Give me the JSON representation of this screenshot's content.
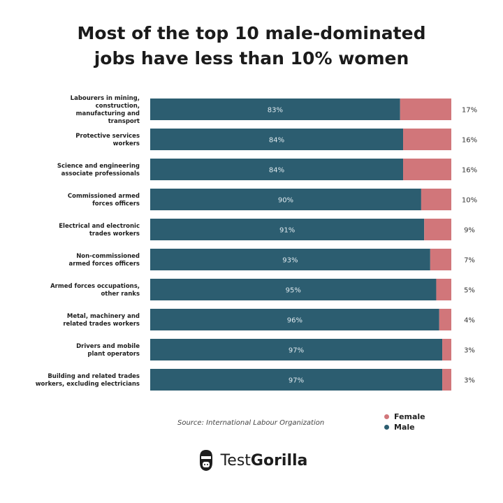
{
  "title": {
    "line1": "Most of the top 10 male-dominated",
    "line2": "jobs have less than 10% women"
  },
  "source": "Source: International Labour Organization",
  "brand": {
    "part1": "Test",
    "part2": "Gorilla",
    "icon": "gorilla-logo-icon"
  },
  "legend": [
    {
      "name": "Female",
      "color": "#d1767a"
    },
    {
      "name": "Male",
      "color": "#2c5d70"
    }
  ],
  "chart_data": {
    "type": "bar",
    "orientation": "horizontal",
    "stacked": true,
    "categories": [
      [
        "Labourers in mining,",
        "construction,",
        "manufacturing and",
        "transport"
      ],
      [
        "Protective services",
        "workers"
      ],
      [
        "Science and engineering",
        "associate professionals"
      ],
      [
        "Commissioned armed",
        "forces officers"
      ],
      [
        "Electrical and electronic",
        "trades workers"
      ],
      [
        "Non-commissioned",
        "armed forces officers"
      ],
      [
        "Armed forces occupations,",
        "other ranks"
      ],
      [
        "Metal, machinery and",
        "related trades workers"
      ],
      [
        "Drivers and mobile",
        "plant operators"
      ],
      [
        "Building and related trades",
        "workers, excluding electricians"
      ]
    ],
    "series": [
      {
        "name": "Male",
        "color": "#2c5d70",
        "values": [
          83,
          84,
          84,
          90,
          91,
          93,
          95,
          96,
          97,
          97
        ]
      },
      {
        "name": "Female",
        "color": "#d1767a",
        "values": [
          17,
          16,
          16,
          10,
          9,
          7,
          5,
          4,
          3,
          3
        ]
      }
    ],
    "unit": "%",
    "xlim": [
      0,
      100
    ],
    "grid": false,
    "legend_position": "bottom-right"
  }
}
